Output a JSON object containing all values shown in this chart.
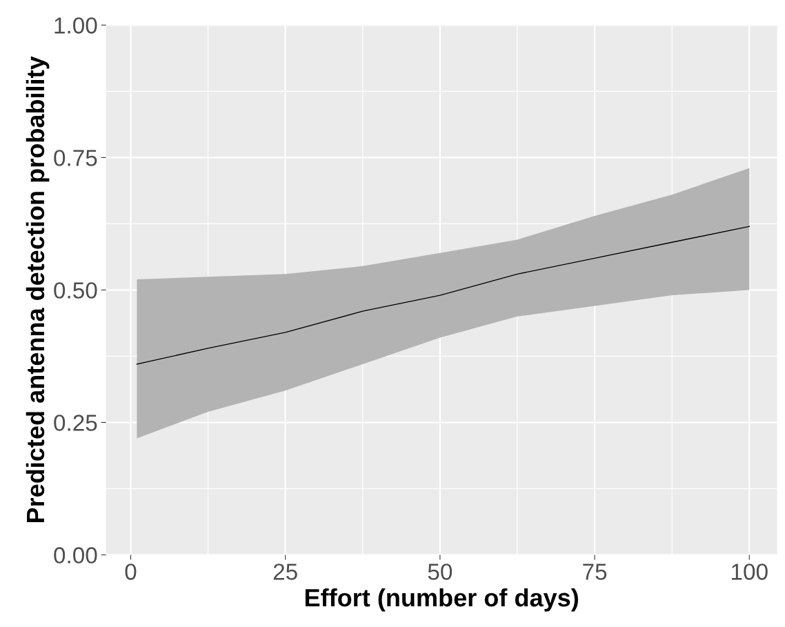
{
  "chart_data": {
    "type": "line",
    "xlabel": "Effort (number of days)",
    "ylabel": "Predicted antenna detection probability",
    "x": [
      1,
      12.5,
      25,
      37.5,
      50,
      62.5,
      75,
      87.5,
      100
    ],
    "series": [
      {
        "color": "#000000",
        "values": [
          0.36,
          0.39,
          0.42,
          0.46,
          0.49,
          0.53,
          0.56,
          0.59,
          0.62
        ],
        "lower": [
          0.22,
          0.27,
          0.31,
          0.36,
          0.41,
          0.45,
          0.47,
          0.49,
          0.5
        ],
        "upper": [
          0.52,
          0.525,
          0.53,
          0.545,
          0.57,
          0.595,
          0.64,
          0.68,
          0.73
        ]
      }
    ],
    "xlim": [
      -4,
      104.5
    ],
    "ylim": [
      0,
      1
    ],
    "xticks": [
      0,
      25,
      50,
      75,
      100
    ],
    "yticks": [
      {
        "value": 0,
        "label": "0.00"
      },
      {
        "value": 0.25,
        "label": "0.25"
      },
      {
        "value": 0.5,
        "label": "0.50"
      },
      {
        "value": 0.75,
        "label": "0.75"
      },
      {
        "value": 1,
        "label": "1.00"
      }
    ],
    "grid": true
  }
}
